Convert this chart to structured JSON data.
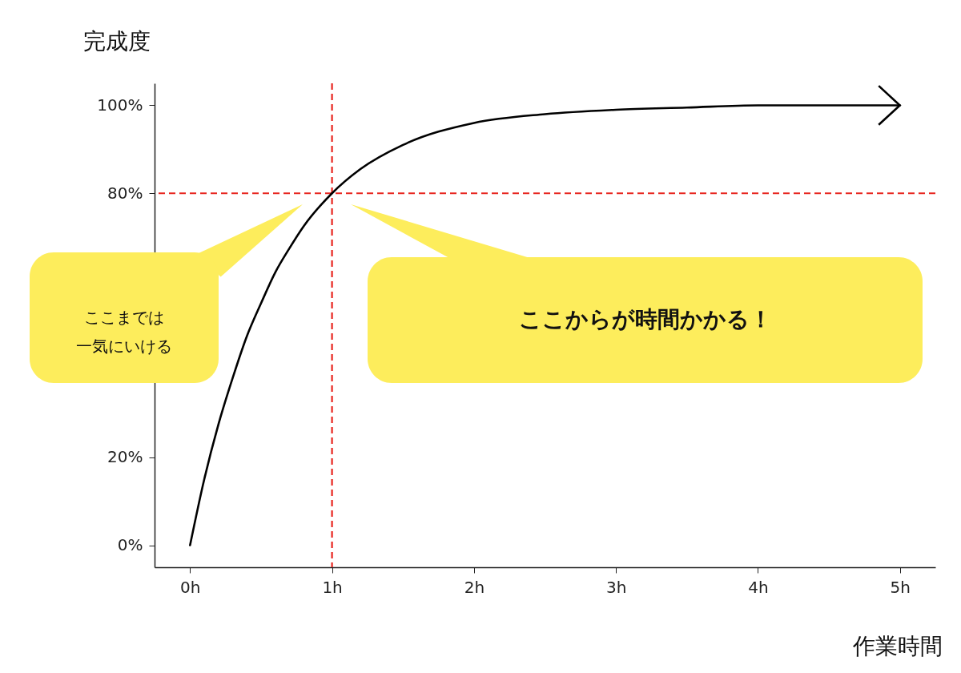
{
  "chart_data": {
    "type": "line",
    "xlabel": "作業時間",
    "ylabel": "完成度",
    "x": [
      0,
      0.1,
      0.2,
      0.3,
      0.4,
      0.5,
      0.6,
      0.7,
      0.8,
      1,
      1.2,
      1.5,
      2,
      2.5,
      3,
      3.5,
      4,
      4.5,
      5
    ],
    "series": [
      {
        "color": "#000000",
        "values": [
          0,
          15,
          27.5,
          38,
          47.5,
          55,
          62,
          67.5,
          72.5,
          80,
          85.5,
          91,
          96,
          98,
          99,
          99.5,
          100,
          100,
          100
        ]
      }
    ],
    "xlim": [
      -0.25,
      5.25
    ],
    "ylim": [
      -5,
      105
    ],
    "xticks": [
      {
        "value": 0,
        "label": "0h"
      },
      {
        "value": 1,
        "label": "1h"
      },
      {
        "value": 2,
        "label": "2h"
      },
      {
        "value": 3,
        "label": "3h"
      },
      {
        "value": 4,
        "label": "4h"
      },
      {
        "value": 5,
        "label": "5h"
      }
    ],
    "yticks": [
      {
        "value": 0,
        "label": "0%"
      },
      {
        "value": 20,
        "label": "20%"
      },
      {
        "value": 80,
        "label": "80%"
      },
      {
        "value": 100,
        "label": "100%"
      }
    ],
    "ref_lines": [
      {
        "axis": "x",
        "value": 1,
        "color": "#e8251f",
        "line_style": "dashed"
      },
      {
        "axis": "y",
        "value": 80,
        "color": "#e8251f",
        "line_style": "dashed"
      }
    ],
    "annotations": [
      "ここまでは一気にいける",
      "ここからが時間かかる！"
    ],
    "grid": false,
    "legend": false,
    "marker": "none",
    "line_style": "solid"
  }
}
